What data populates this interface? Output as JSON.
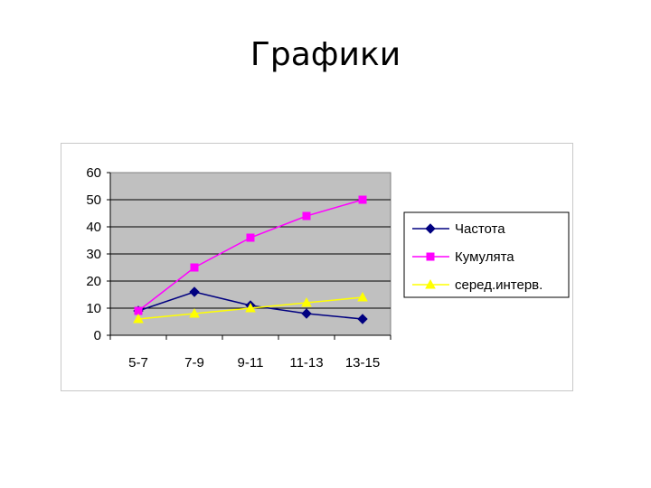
{
  "slide": {
    "title": "Графики"
  },
  "chart_data": {
    "type": "line",
    "categories": [
      "5-7",
      "7-9",
      "9-11",
      "11-13",
      "13-15"
    ],
    "series": [
      {
        "name": "Частота",
        "values": [
          9,
          16,
          11,
          8,
          6
        ],
        "color": "#000080",
        "marker": "diamond"
      },
      {
        "name": "Кумулята",
        "values": [
          9,
          25,
          36,
          44,
          50
        ],
        "color": "#ff00ff",
        "marker": "square"
      },
      {
        "name": "серед.интерв.",
        "values": [
          6,
          8,
          10,
          12,
          14
        ],
        "color": "#ffff00",
        "marker": "triangle"
      }
    ],
    "y_ticks": [
      "0",
      "10",
      "20",
      "30",
      "40",
      "50",
      "60"
    ],
    "ylim": [
      0,
      60
    ],
    "grid": true,
    "plot_background": "#c0c0c0",
    "legend": "right"
  }
}
